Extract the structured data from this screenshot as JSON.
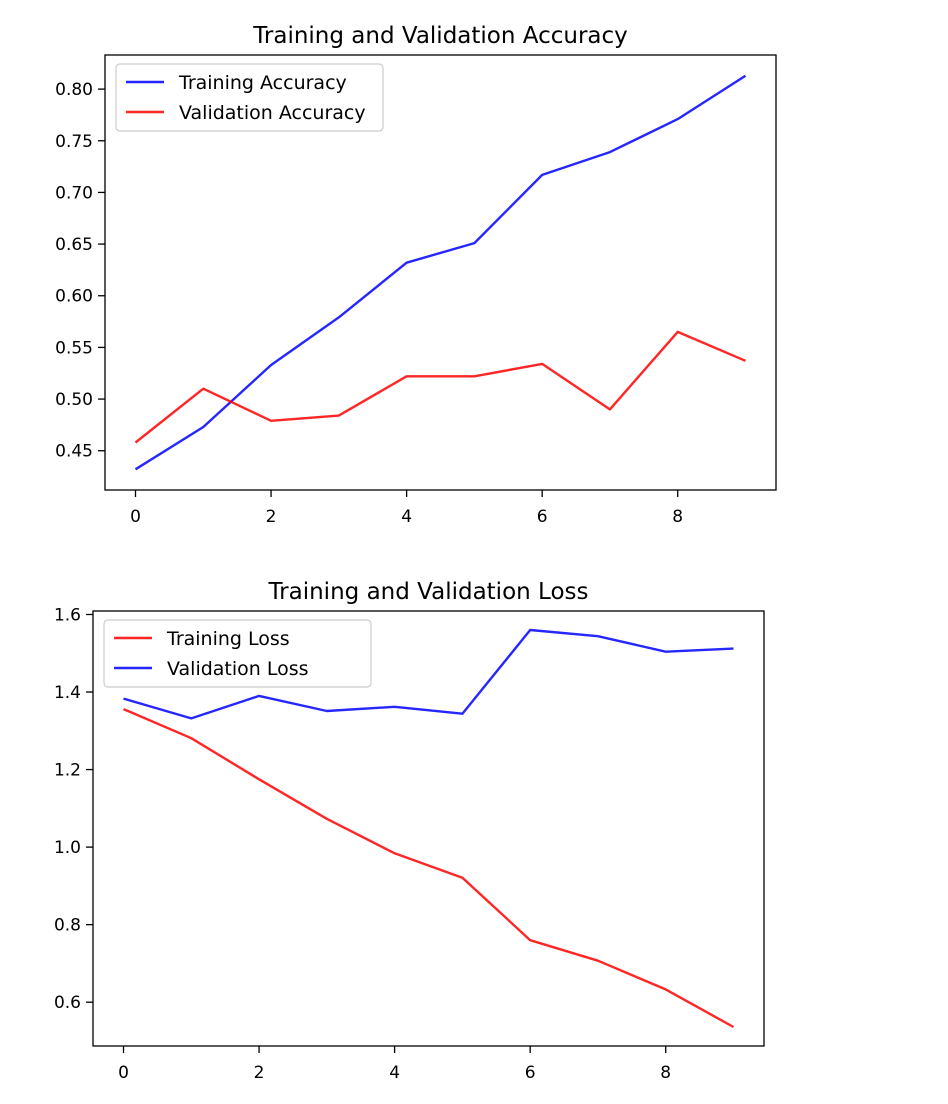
{
  "chart_data": [
    {
      "type": "line",
      "title": "Training and Validation Accuracy",
      "xlabel": "",
      "ylabel": "",
      "x": [
        0,
        1,
        2,
        3,
        4,
        5,
        6,
        7,
        8,
        9
      ],
      "xlim": [
        -0.45,
        9.45
      ],
      "ylim": [
        0.412,
        0.833
      ],
      "xticks": [
        0,
        2,
        4,
        6,
        8
      ],
      "yticks": [
        0.45,
        0.5,
        0.55,
        0.6,
        0.65,
        0.7,
        0.75,
        0.8
      ],
      "ytick_labels": [
        "0.45",
        "0.50",
        "0.55",
        "0.60",
        "0.65",
        "0.70",
        "0.75",
        "0.80"
      ],
      "grid": false,
      "legend_position": "upper-left",
      "series": [
        {
          "name": "Training Accuracy",
          "color": "#0000ff",
          "values": [
            0.432,
            0.473,
            0.533,
            0.579,
            0.632,
            0.651,
            0.717,
            0.739,
            0.771,
            0.813
          ]
        },
        {
          "name": "Validation Accuracy",
          "color": "#ff0000",
          "values": [
            0.458,
            0.51,
            0.479,
            0.484,
            0.522,
            0.522,
            0.534,
            0.49,
            0.565,
            0.537
          ]
        }
      ]
    },
    {
      "type": "line",
      "title": "Training and Validation Loss",
      "xlabel": "",
      "ylabel": "",
      "x": [
        0,
        1,
        2,
        3,
        4,
        5,
        6,
        7,
        8,
        9
      ],
      "xlim": [
        -0.45,
        9.45
      ],
      "ylim": [
        0.487,
        1.609
      ],
      "xticks": [
        0,
        2,
        4,
        6,
        8
      ],
      "yticks": [
        0.6,
        0.8,
        1.0,
        1.2,
        1.4,
        1.6
      ],
      "ytick_labels": [
        "0.6",
        "0.8",
        "1.0",
        "1.2",
        "1.4",
        "1.6"
      ],
      "grid": false,
      "legend_position": "upper-left",
      "series": [
        {
          "name": "Training Loss",
          "color": "#ff0000",
          "values": [
            1.356,
            1.281,
            1.175,
            1.073,
            0.984,
            0.921,
            0.76,
            0.707,
            0.633,
            0.536
          ]
        },
        {
          "name": "Validation Loss",
          "color": "#0000ff",
          "values": [
            1.383,
            1.332,
            1.39,
            1.351,
            1.362,
            1.344,
            1.56,
            1.544,
            1.504,
            1.512
          ]
        }
      ]
    }
  ]
}
